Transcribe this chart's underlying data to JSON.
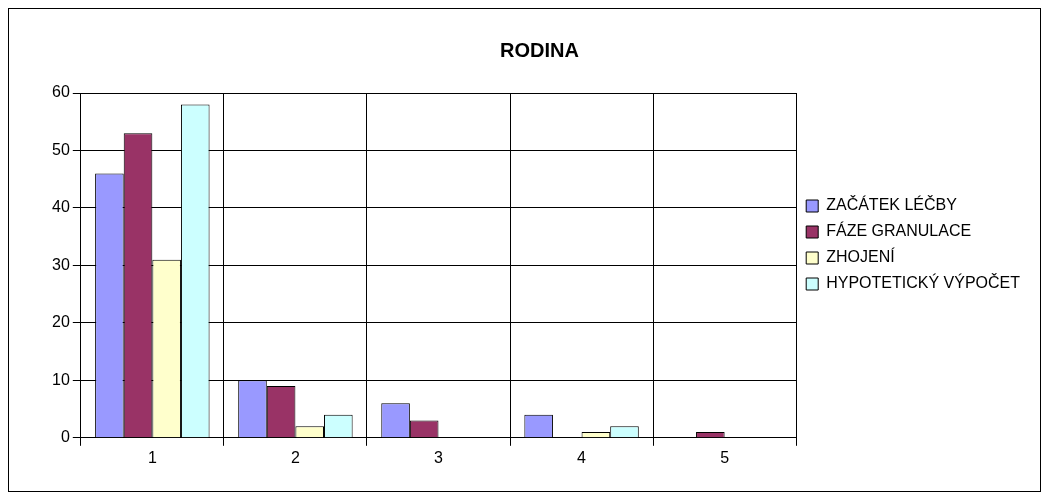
{
  "chart_data": {
    "type": "bar",
    "title": "RODINA",
    "categories": [
      "1",
      "2",
      "3",
      "4",
      "5"
    ],
    "series": [
      {
        "name": "ZAČÁTEK LÉČBY",
        "color": "#9999ff",
        "values": [
          46,
          10,
          6,
          4,
          0
        ]
      },
      {
        "name": "FÁZE GRANULACE",
        "color": "#993366",
        "values": [
          53,
          9,
          3,
          0,
          1
        ]
      },
      {
        "name": "ZHOJENÍ",
        "color": "#ffffcc",
        "values": [
          31,
          2,
          0,
          1,
          0
        ]
      },
      {
        "name": "HYPOTETICKÝ VÝPOČET",
        "color": "#ccffff",
        "values": [
          58,
          4,
          0,
          2,
          0
        ]
      }
    ],
    "ylim": [
      0,
      60
    ],
    "yticks": [
      0,
      10,
      20,
      30,
      40,
      50,
      60
    ],
    "grid": true,
    "legend": "right"
  }
}
